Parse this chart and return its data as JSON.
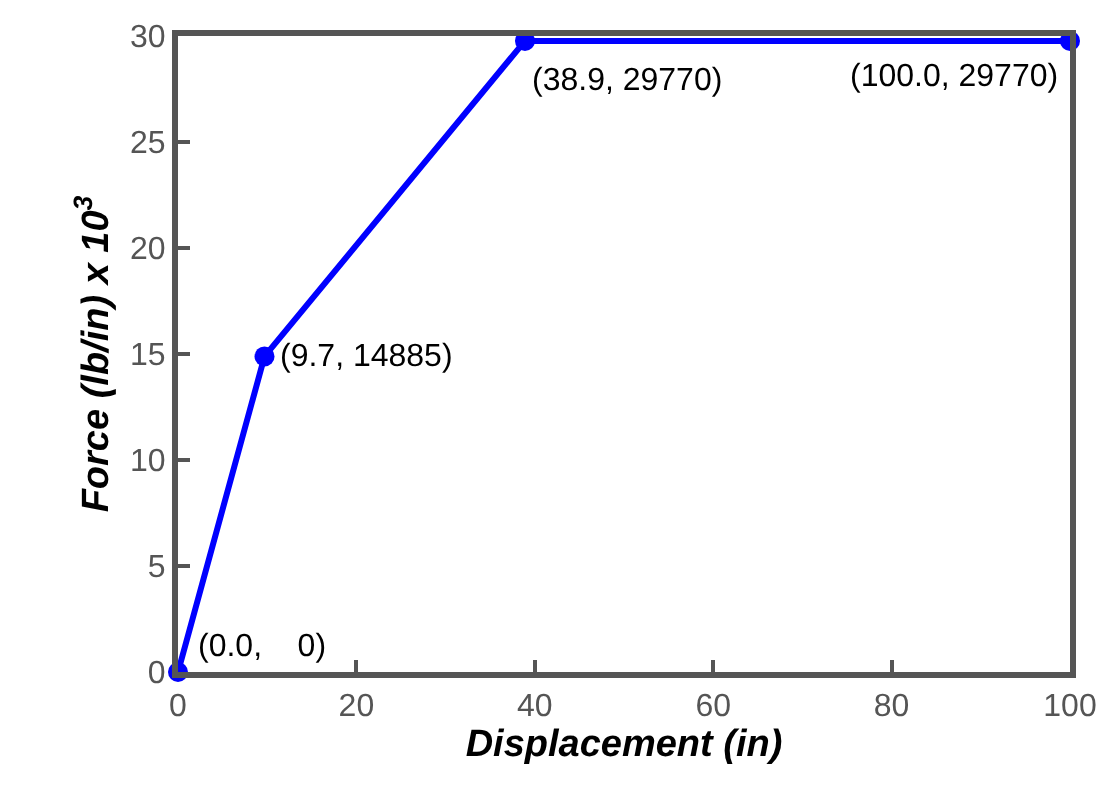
{
  "chart_data": {
    "type": "line",
    "xlabel": "Displacement (in)",
    "ylabel": "Force (lb/in) x 10$^{3}$",
    "x": [
      0,
      9.7,
      38.9,
      100
    ],
    "series": [
      {
        "color": "#0000ff",
        "values": [
          0,
          14.885,
          29.77,
          29.77
        ]
      }
    ],
    "xlim": [
      0,
      100
    ],
    "ylim": [
      0,
      30
    ],
    "xticks": [
      0,
      20,
      40,
      60,
      80,
      100
    ],
    "yticks": [
      0,
      5,
      10,
      15,
      20,
      25,
      30
    ],
    "legend": false,
    "marker": "circle",
    "line_style": "solid",
    "annotations": [
      {
        "text": "(0.0,    0)",
        "x": 0,
        "y": 0
      },
      {
        "text": "(9.7, 14885)",
        "x": 9.7,
        "y": 14.885
      },
      {
        "text": "(38.9, 29770)",
        "x": 38.9,
        "y": 29.77
      },
      {
        "text": "(100.0, 29770)",
        "x": 100,
        "y": 29.77
      }
    ]
  }
}
